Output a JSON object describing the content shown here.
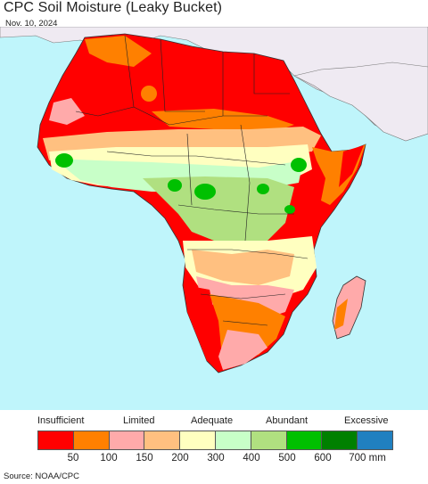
{
  "title": "CPC Soil Moisture (Leaky Bucket)",
  "date": "Nov. 10, 2024",
  "legend": {
    "categories": [
      "Insufficient",
      "Limited",
      "Adequate",
      "Abundant",
      "Excessive"
    ],
    "colors": [
      "#ff0000",
      "#ff8000",
      "#ffaaaa",
      "#ffc080",
      "#ffffc0",
      "#c8ffc8",
      "#b0e080",
      "#00c000",
      "#008000",
      "#2080c0"
    ],
    "ticks": [
      "50",
      "100",
      "150",
      "200",
      "300",
      "400",
      "500",
      "600",
      "700 mm"
    ]
  },
  "map": {
    "ocean_color": "#bff5fb",
    "land_outside_color": "#efeaf2",
    "legend_colors_used": {
      "insufficient": "#ff0000",
      "limited": "#ff8000",
      "adequate": "#ffffc0",
      "abundant": "#b0e080",
      "wet": "#00c000"
    }
  },
  "source": "Source: NOAA/CPC"
}
